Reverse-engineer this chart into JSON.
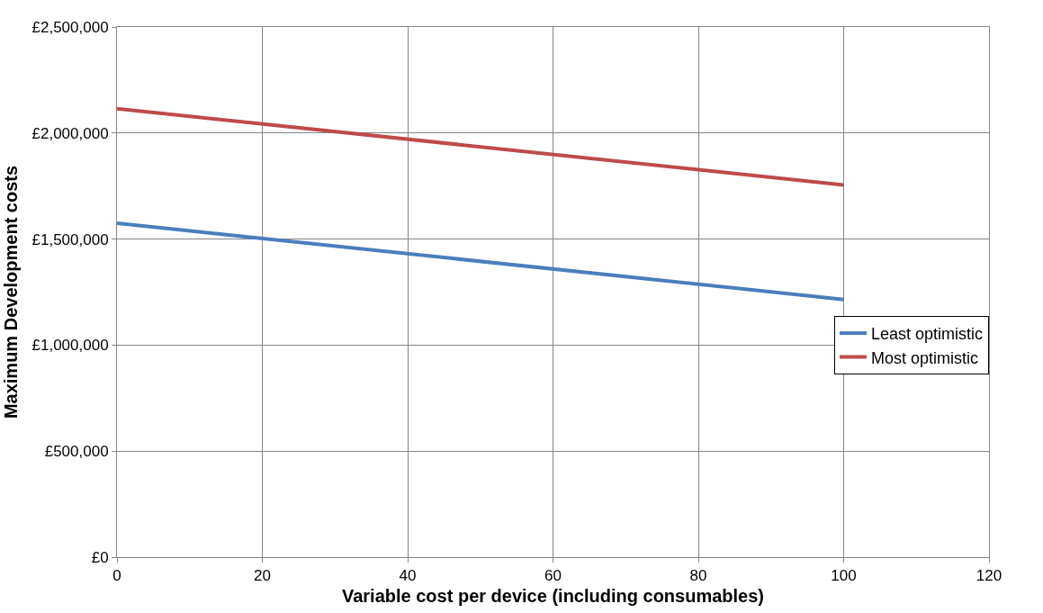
{
  "chart_data": {
    "type": "line",
    "xlabel": "Variable cost per device (including consumables)",
    "ylabel": "Maximum Development costs",
    "x": [
      0,
      100
    ],
    "series": [
      {
        "name": "Least optimistic",
        "color": "#4a7ebb",
        "values": [
          1575000,
          1215000
        ]
      },
      {
        "name": "Most optimistic",
        "color": "#be4b48",
        "values": [
          2115000,
          1755000
        ]
      }
    ],
    "xlim": [
      0,
      120
    ],
    "xticks": [
      0,
      20,
      40,
      60,
      80,
      100,
      120
    ],
    "ylim": [
      0,
      2500000
    ],
    "yticks": [
      {
        "value": 0,
        "label": "£0"
      },
      {
        "value": 500000,
        "label": "£500,000"
      },
      {
        "value": 1000000,
        "label": "£1,000,000"
      },
      {
        "value": 1500000,
        "label": "£1,500,000"
      },
      {
        "value": 2000000,
        "label": "£2,000,000"
      },
      {
        "value": 2500000,
        "label": "£2,500,000"
      }
    ],
    "grid": true,
    "legend": "right",
    "marker": "none",
    "line_style": "solid"
  }
}
